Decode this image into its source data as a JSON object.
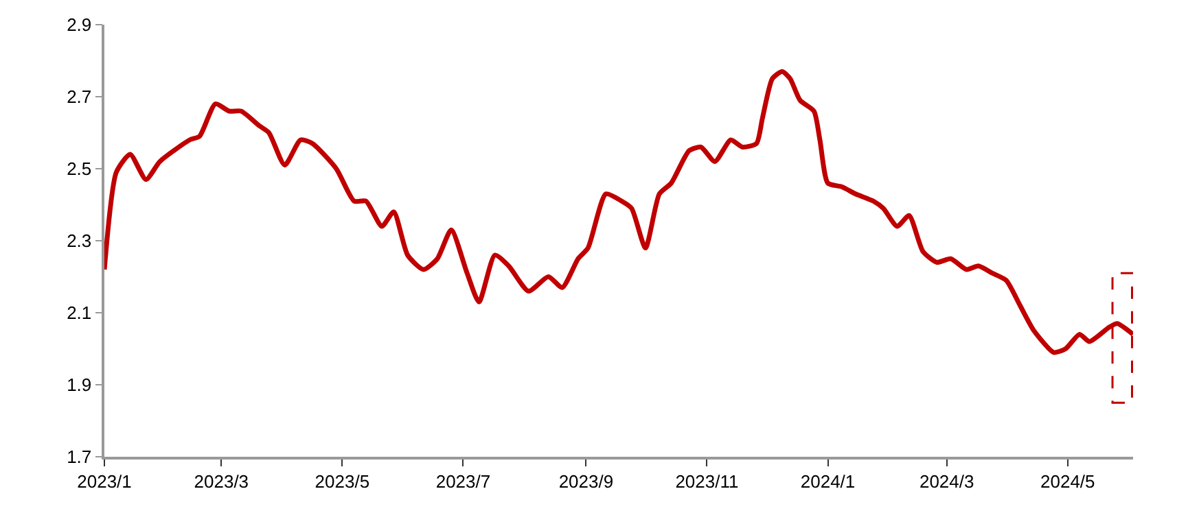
{
  "chart_data": {
    "type": "line",
    "x": [
      "2023-01-01",
      "2023-01-07",
      "2023-01-14",
      "2023-01-22",
      "2023-01-29",
      "2023-02-13",
      "2023-02-18",
      "2023-02-26",
      "2023-03-05",
      "2023-03-11",
      "2023-03-20",
      "2023-03-25",
      "2023-04-02",
      "2023-04-10",
      "2023-04-16",
      "2023-04-28",
      "2023-05-07",
      "2023-05-13",
      "2023-05-21",
      "2023-05-27",
      "2023-06-03",
      "2023-06-11",
      "2023-06-18",
      "2023-06-25",
      "2023-07-03",
      "2023-07-09",
      "2023-07-17",
      "2023-07-24",
      "2023-08-03",
      "2023-08-13",
      "2023-08-20",
      "2023-08-28",
      "2023-09-02",
      "2023-09-11",
      "2023-09-19",
      "2023-09-24",
      "2023-10-01",
      "2023-10-08",
      "2023-10-14",
      "2023-10-23",
      "2023-10-29",
      "2023-11-05",
      "2023-11-13",
      "2023-11-19",
      "2023-11-26",
      "2023-11-29",
      "2023-12-04",
      "2023-12-09",
      "2023-12-13",
      "2023-12-18",
      "2023-12-25",
      "2023-12-28",
      "2024-01-01",
      "2024-01-08",
      "2024-01-15",
      "2024-01-24",
      "2024-01-29",
      "2024-02-05",
      "2024-02-11",
      "2024-02-18",
      "2024-02-25",
      "2024-03-03",
      "2024-03-11",
      "2024-03-17",
      "2024-03-24",
      "2024-03-31",
      "2024-04-07",
      "2024-04-14",
      "2024-04-24",
      "2024-04-30",
      "2024-05-07",
      "2024-05-12",
      "2024-05-22",
      "2024-05-26",
      "2024-06-03"
    ],
    "series": [
      {
        "color": "#c00000",
        "values": [
          2.22,
          2.49,
          2.54,
          2.47,
          2.52,
          2.58,
          2.59,
          2.68,
          2.66,
          2.66,
          2.62,
          2.6,
          2.51,
          2.58,
          2.57,
          2.5,
          2.41,
          2.41,
          2.34,
          2.38,
          2.26,
          2.22,
          2.25,
          2.33,
          2.21,
          2.13,
          2.26,
          2.23,
          2.16,
          2.2,
          2.17,
          2.25,
          2.28,
          2.43,
          2.41,
          2.39,
          2.28,
          2.43,
          2.46,
          2.55,
          2.56,
          2.52,
          2.58,
          2.56,
          2.57,
          2.64,
          2.75,
          2.77,
          2.75,
          2.69,
          2.66,
          2.58,
          2.46,
          2.45,
          2.43,
          2.41,
          2.39,
          2.34,
          2.37,
          2.27,
          2.24,
          2.25,
          2.22,
          2.23,
          2.21,
          2.19,
          2.12,
          2.05,
          1.99,
          2.0,
          2.04,
          2.02,
          2.06,
          2.07,
          2.04
        ]
      }
    ],
    "xlim": [
      "2023-01-01",
      "2024-06-03"
    ],
    "xticks": [
      {
        "value": "2023-01-01",
        "label": "2023/1"
      },
      {
        "value": "2023-03-01",
        "label": "2023/3"
      },
      {
        "value": "2023-05-01",
        "label": "2023/5"
      },
      {
        "value": "2023-07-01",
        "label": "2023/7"
      },
      {
        "value": "2023-09-01",
        "label": "2023/9"
      },
      {
        "value": "2023-11-01",
        "label": "2023/11"
      },
      {
        "value": "2024-01-01",
        "label": "2024/1"
      },
      {
        "value": "2024-03-01",
        "label": "2024/3"
      },
      {
        "value": "2024-05-01",
        "label": "2024/5"
      }
    ],
    "ylim": [
      1.7,
      2.9
    ],
    "yticks": [
      {
        "value": 1.7,
        "label": "1.7"
      },
      {
        "value": 1.9,
        "label": "1.9"
      },
      {
        "value": 2.1,
        "label": "2.1"
      },
      {
        "value": 2.3,
        "label": "2.3"
      },
      {
        "value": 2.5,
        "label": "2.5"
      },
      {
        "value": 2.7,
        "label": "2.7"
      },
      {
        "value": 2.9,
        "label": "2.9"
      }
    ],
    "marker": "none",
    "line_style": "solid"
  }
}
